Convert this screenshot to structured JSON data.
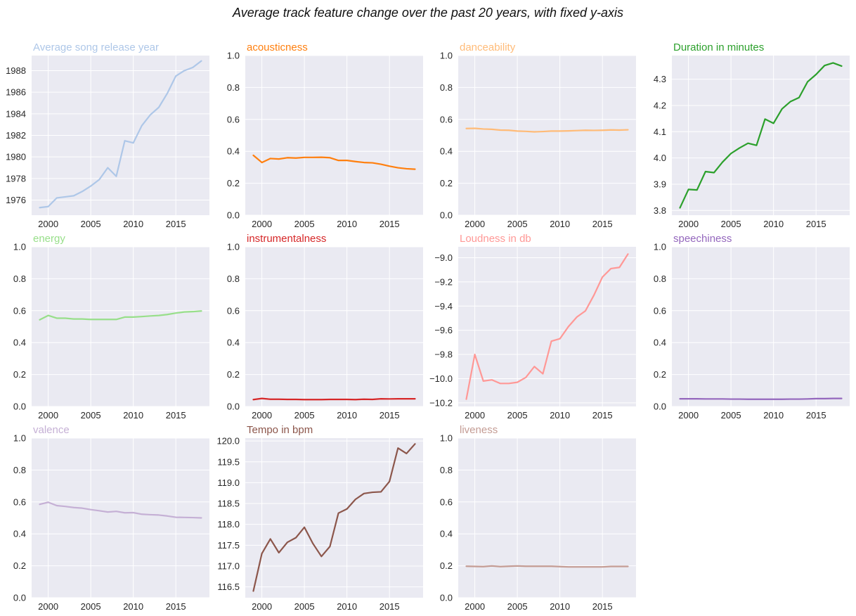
{
  "figure": {
    "suptitle": "Average track feature change over the past 20 years, with fixed y-axis"
  },
  "chart_data": [
    {
      "type": "line",
      "title": "Average song release year",
      "color": "#aec7e8",
      "x": [
        1999,
        2000,
        2001,
        2002,
        2003,
        2004,
        2005,
        2006,
        2007,
        2008,
        2009,
        2010,
        2011,
        2012,
        2013,
        2014,
        2015,
        2016,
        2017,
        2018
      ],
      "values": [
        1975.3,
        1975.4,
        1976.2,
        1976.3,
        1976.4,
        1976.8,
        1977.3,
        1977.9,
        1979.0,
        1978.2,
        1981.5,
        1981.3,
        1982.9,
        1983.9,
        1984.6,
        1985.9,
        1987.5,
        1988.0,
        1988.3,
        1988.9
      ],
      "ylim": [
        1974.6,
        1989.4
      ],
      "yticks": [
        1976,
        1978,
        1980,
        1982,
        1984,
        1986,
        1988
      ],
      "xticks": [
        2000,
        2005,
        2010,
        2015
      ],
      "xlim": [
        1998.05,
        2018.95
      ]
    },
    {
      "type": "line",
      "title": "acousticness",
      "color": "#ff7f0e",
      "x": [
        1999,
        2000,
        2001,
        2002,
        2003,
        2004,
        2005,
        2006,
        2007,
        2008,
        2009,
        2010,
        2011,
        2012,
        2013,
        2014,
        2015,
        2016,
        2017,
        2018
      ],
      "values": [
        0.375,
        0.33,
        0.355,
        0.352,
        0.36,
        0.358,
        0.362,
        0.362,
        0.363,
        0.36,
        0.343,
        0.343,
        0.336,
        0.33,
        0.328,
        0.319,
        0.307,
        0.297,
        0.291,
        0.288
      ],
      "ylim": [
        0,
        1
      ],
      "yticks": [
        0.0,
        0.2,
        0.4,
        0.6,
        0.8,
        1.0
      ],
      "xticks": [
        2000,
        2005,
        2010,
        2015
      ],
      "xlim": [
        1998.05,
        2018.95
      ]
    },
    {
      "type": "line",
      "title": "danceability",
      "color": "#ffbb78",
      "x": [
        1999,
        2000,
        2001,
        2002,
        2003,
        2004,
        2005,
        2006,
        2007,
        2008,
        2009,
        2010,
        2011,
        2012,
        2013,
        2014,
        2015,
        2016,
        2017,
        2018
      ],
      "values": [
        0.543,
        0.544,
        0.54,
        0.538,
        0.533,
        0.532,
        0.527,
        0.525,
        0.522,
        0.524,
        0.527,
        0.527,
        0.528,
        0.53,
        0.532,
        0.531,
        0.532,
        0.534,
        0.533,
        0.535
      ],
      "ylim": [
        0,
        1
      ],
      "yticks": [
        0.0,
        0.2,
        0.4,
        0.6,
        0.8,
        1.0
      ],
      "xticks": [
        2000,
        2005,
        2010,
        2015
      ],
      "xlim": [
        1998.05,
        2018.95
      ]
    },
    {
      "type": "line",
      "title": "Duration in minutes",
      "color": "#2ca02c",
      "x": [
        1999,
        2000,
        2001,
        2002,
        2003,
        2004,
        2005,
        2006,
        2007,
        2008,
        2009,
        2010,
        2011,
        2012,
        2013,
        2014,
        2015,
        2016,
        2017,
        2018
      ],
      "values": [
        3.81,
        3.88,
        3.878,
        3.948,
        3.944,
        3.984,
        4.017,
        4.038,
        4.056,
        4.048,
        4.148,
        4.132,
        4.187,
        4.215,
        4.23,
        4.29,
        4.318,
        4.352,
        4.362,
        4.35
      ],
      "ylim": [
        3.782,
        4.39
      ],
      "yticks": [
        3.8,
        3.9,
        4.0,
        4.1,
        4.2,
        4.3
      ],
      "xticks": [
        2000,
        2005,
        2010,
        2015
      ],
      "xlim": [
        1998.05,
        2018.95
      ]
    },
    {
      "type": "line",
      "title": "energy",
      "color": "#98df8a",
      "x": [
        1999,
        2000,
        2001,
        2002,
        2003,
        2004,
        2005,
        2006,
        2007,
        2008,
        2009,
        2010,
        2011,
        2012,
        2013,
        2014,
        2015,
        2016,
        2017,
        2018
      ],
      "values": [
        0.543,
        0.57,
        0.553,
        0.553,
        0.548,
        0.548,
        0.545,
        0.545,
        0.545,
        0.545,
        0.56,
        0.56,
        0.563,
        0.567,
        0.57,
        0.576,
        0.585,
        0.592,
        0.594,
        0.598
      ],
      "ylim": [
        0,
        1
      ],
      "yticks": [
        0.0,
        0.2,
        0.4,
        0.6,
        0.8,
        1.0
      ],
      "xticks": [
        2000,
        2005,
        2010,
        2015
      ],
      "xlim": [
        1998.05,
        2018.95
      ]
    },
    {
      "type": "line",
      "title": "instrumentalness",
      "color": "#d62728",
      "x": [
        1999,
        2000,
        2001,
        2002,
        2003,
        2004,
        2005,
        2006,
        2007,
        2008,
        2009,
        2010,
        2011,
        2012,
        2013,
        2014,
        2015,
        2016,
        2017,
        2018
      ],
      "values": [
        0.043,
        0.05,
        0.045,
        0.045,
        0.044,
        0.044,
        0.043,
        0.043,
        0.043,
        0.044,
        0.044,
        0.044,
        0.043,
        0.045,
        0.044,
        0.048,
        0.047,
        0.048,
        0.048,
        0.048
      ],
      "ylim": [
        0,
        1
      ],
      "yticks": [
        0.0,
        0.2,
        0.4,
        0.6,
        0.8,
        1.0
      ],
      "xticks": [
        2000,
        2005,
        2010,
        2015
      ],
      "xlim": [
        1998.05,
        2018.95
      ]
    },
    {
      "type": "line",
      "title": "Loudness in db",
      "color": "#ff9896",
      "x": [
        1999,
        2000,
        2001,
        2002,
        2003,
        2004,
        2005,
        2006,
        2007,
        2008,
        2009,
        2010,
        2011,
        2012,
        2013,
        2014,
        2015,
        2016,
        2017,
        2018
      ],
      "values": [
        -10.17,
        -9.8,
        -10.02,
        -10.01,
        -10.04,
        -10.04,
        -10.03,
        -9.99,
        -9.9,
        -9.96,
        -9.69,
        -9.67,
        -9.57,
        -9.49,
        -9.44,
        -9.31,
        -9.16,
        -9.09,
        -9.08,
        -8.97
      ],
      "ylim": [
        -10.23,
        -8.91
      ],
      "yticks": [
        -10.2,
        -10.0,
        -9.8,
        -9.6,
        -9.4,
        -9.2,
        -9.0
      ],
      "xticks": [
        2000,
        2005,
        2010,
        2015
      ],
      "xlim": [
        1998.05,
        2018.95
      ]
    },
    {
      "type": "line",
      "title": "speechiness",
      "color": "#9467bd",
      "x": [
        1999,
        2000,
        2001,
        2002,
        2003,
        2004,
        2005,
        2006,
        2007,
        2008,
        2009,
        2010,
        2011,
        2012,
        2013,
        2014,
        2015,
        2016,
        2017,
        2018
      ],
      "values": [
        0.048,
        0.048,
        0.048,
        0.047,
        0.047,
        0.047,
        0.046,
        0.046,
        0.045,
        0.045,
        0.045,
        0.045,
        0.045,
        0.046,
        0.046,
        0.047,
        0.049,
        0.049,
        0.05,
        0.05
      ],
      "ylim": [
        0,
        1
      ],
      "yticks": [
        0.0,
        0.2,
        0.4,
        0.6,
        0.8,
        1.0
      ],
      "xticks": [
        2000,
        2005,
        2010,
        2015
      ],
      "xlim": [
        1998.05,
        2018.95
      ]
    },
    {
      "type": "line",
      "title": "valence",
      "color": "#c5b0d5",
      "x": [
        1999,
        2000,
        2001,
        2002,
        2003,
        2004,
        2005,
        2006,
        2007,
        2008,
        2009,
        2010,
        2011,
        2012,
        2013,
        2014,
        2015,
        2016,
        2017,
        2018
      ],
      "values": [
        0.585,
        0.598,
        0.577,
        0.572,
        0.565,
        0.561,
        0.552,
        0.545,
        0.537,
        0.541,
        0.532,
        0.533,
        0.523,
        0.52,
        0.518,
        0.512,
        0.504,
        0.503,
        0.502,
        0.5
      ],
      "ylim": [
        0,
        1
      ],
      "yticks": [
        0.0,
        0.2,
        0.4,
        0.6,
        0.8,
        1.0
      ],
      "xticks": [
        2000,
        2005,
        2010,
        2015
      ],
      "xlim": [
        1998.05,
        2018.95
      ]
    },
    {
      "type": "line",
      "title": "Tempo in bpm",
      "color": "#8c564b",
      "x": [
        1999,
        2000,
        2001,
        2002,
        2003,
        2004,
        2005,
        2006,
        2007,
        2008,
        2009,
        2010,
        2011,
        2012,
        2013,
        2014,
        2015,
        2016,
        2017,
        2018
      ],
      "values": [
        116.4,
        117.3,
        117.65,
        117.32,
        117.57,
        117.68,
        117.93,
        117.54,
        117.23,
        117.47,
        118.27,
        118.37,
        118.6,
        118.74,
        118.77,
        118.78,
        119.03,
        119.83,
        119.7,
        119.93
      ],
      "ylim": [
        116.24,
        120.07
      ],
      "yticks": [
        116.5,
        117.0,
        117.5,
        118.0,
        118.5,
        119.0,
        119.5,
        120.0
      ],
      "xticks": [
        2000,
        2005,
        2010,
        2015
      ],
      "xlim": [
        1998.05,
        2018.95
      ]
    },
    {
      "type": "line",
      "title": "liveness",
      "color": "#c49c94",
      "x": [
        1999,
        2000,
        2001,
        2002,
        2003,
        2004,
        2005,
        2006,
        2007,
        2008,
        2009,
        2010,
        2011,
        2012,
        2013,
        2014,
        2015,
        2016,
        2017,
        2018
      ],
      "values": [
        0.197,
        0.196,
        0.195,
        0.199,
        0.195,
        0.197,
        0.199,
        0.197,
        0.197,
        0.197,
        0.197,
        0.195,
        0.193,
        0.193,
        0.193,
        0.193,
        0.193,
        0.196,
        0.196,
        0.196
      ],
      "ylim": [
        0,
        1
      ],
      "yticks": [
        0.0,
        0.2,
        0.4,
        0.6,
        0.8,
        1.0
      ],
      "xticks": [
        2000,
        2005,
        2010,
        2015
      ],
      "xlim": [
        1998.05,
        2018.95
      ]
    }
  ]
}
